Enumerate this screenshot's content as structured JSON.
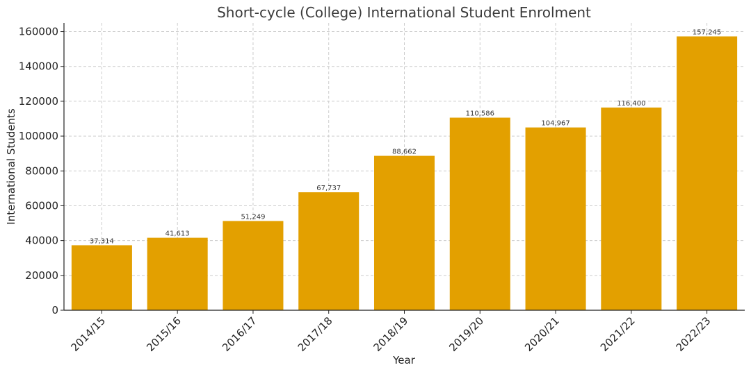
{
  "chart_data": {
    "type": "bar",
    "title": "Short-cycle (College) International Student Enrolment",
    "xlabel": "Year",
    "ylabel": "International Students",
    "categories": [
      "2014/15",
      "2015/16",
      "2016/17",
      "2017/18",
      "2018/19",
      "2019/20",
      "2020/21",
      "2021/22",
      "2022/23"
    ],
    "values": [
      37314,
      41613,
      51249,
      67737,
      88662,
      110586,
      104967,
      116400,
      157245
    ],
    "data_labels": [
      "37,314",
      "41,613",
      "51,249",
      "67,737",
      "88,662",
      "110,586",
      "104,967",
      "116,400",
      "157,245"
    ],
    "y_ticks": [
      0,
      20000,
      40000,
      60000,
      80000,
      100000,
      120000,
      140000,
      160000
    ],
    "ylim": [
      0,
      165000
    ],
    "grid": true,
    "bar_color": "#E3A000"
  }
}
